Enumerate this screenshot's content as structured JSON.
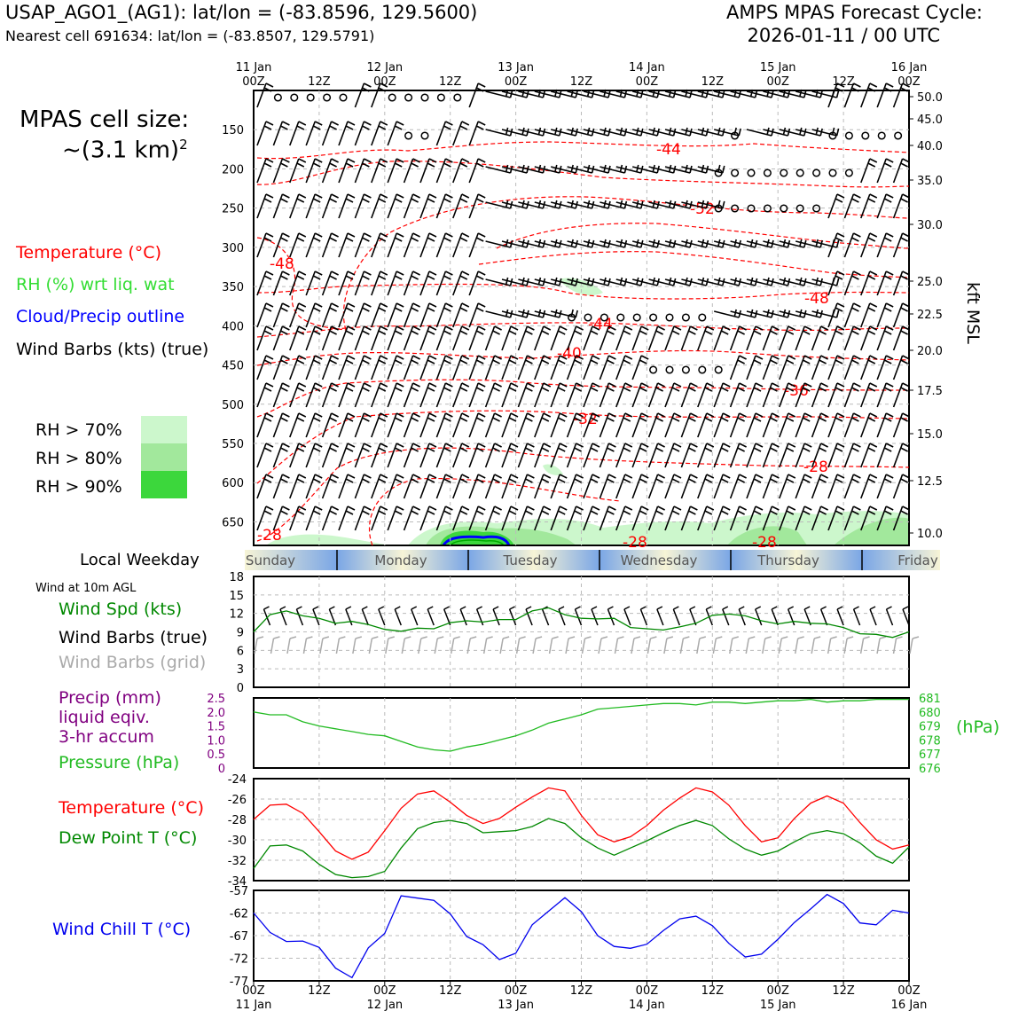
{
  "header": {
    "station": "USAP_AGO1_(AG1): lat/lon = (-83.8596, 129.5600)",
    "nearest": "Nearest cell 691634: lat/lon = (-83.8507, 129.5791)",
    "forecast_title": "AMPS MPAS Forecast Cycle:",
    "cycle": "2026-01-11 / 00 UTC"
  },
  "cell_size": {
    "line1": "MPAS cell size:",
    "line2": "~(3.1 km)",
    "sup": "2"
  },
  "legend": {
    "temperature": "Temperature (°C)",
    "rh": "RH (%) wrt liq. wat",
    "cloud": "Cloud/Precip outline",
    "barbs": "Wind Barbs (kts) (true)",
    "rh70": "RH > 70%",
    "rh80": "RH > 80%",
    "rh90": "RH > 90%",
    "rh_colors": [
      "#ccf7cc",
      "#a2e89c",
      "#3cd73c"
    ]
  },
  "colors": {
    "temp": "#ff0000",
    "rh": "#33dd33",
    "cloud": "#0000ff",
    "green": "#008800",
    "pressure": "#22bb22",
    "precip": "#800080",
    "chill": "#0000ee",
    "grey": "#aaaaaa"
  },
  "kft_label": "kft MSL",
  "local_weekday": {
    "label": "Local Weekday",
    "days": [
      "Sunday",
      "Monday",
      "Tuesday",
      "Wednesday",
      "Thursday",
      "Friday"
    ]
  },
  "wind10m": {
    "title": "Wind at 10m AGL",
    "spd": "Wind Spd (kts)",
    "barbs": "Wind Barbs (true)",
    "grid": "Wind Barbs (grid)"
  },
  "precip_legend": {
    "l1": "Precip (mm)",
    "l2": "liquid eqiv.",
    "l3": "3-hr accum",
    "pressure": "Pressure (hPa)",
    "hpa": "(hPa)"
  },
  "td_legend": {
    "temp": "Temperature (°C)",
    "dew": "Dew Point T (°C)"
  },
  "chill_legend": "Wind Chill T (°C)",
  "chart_data": [
    {
      "type": "contour",
      "title": "Vertical cross-section (pressure levels)",
      "top_date_ticks": [
        {
          "h": 0,
          "l1": "11 Jan",
          "l2": "00Z"
        },
        {
          "h": 12,
          "l1": "",
          "l2": "12Z"
        },
        {
          "h": 24,
          "l1": "12 Jan",
          "l2": "00Z"
        },
        {
          "h": 36,
          "l1": "",
          "l2": "12Z"
        },
        {
          "h": 48,
          "l1": "13 Jan",
          "l2": "00Z"
        },
        {
          "h": 60,
          "l1": "",
          "l2": "12Z"
        },
        {
          "h": 72,
          "l1": "14 Jan",
          "l2": "00Z"
        },
        {
          "h": 84,
          "l1": "",
          "l2": "12Z"
        },
        {
          "h": 96,
          "l1": "15 Jan",
          "l2": "00Z"
        },
        {
          "h": 108,
          "l1": "",
          "l2": "12Z"
        },
        {
          "h": 120,
          "l1": "16 Jan",
          "l2": "00Z"
        }
      ],
      "pressure_ticks": [
        "150",
        "200",
        "250",
        "300",
        "350",
        "400",
        "450",
        "500",
        "550",
        "600",
        "650"
      ],
      "kft_ticks": [
        "50.0",
        "45.0",
        "40.0",
        "35.0",
        "30.0",
        "25.0",
        "22.5",
        "20.0",
        "17.5",
        "15.0",
        "12.5",
        "10.0"
      ],
      "ylim_hpa": [
        100,
        680
      ],
      "temp_labels": [
        "-44",
        "-52",
        "-48",
        "-48",
        "-44",
        "-40",
        "-36",
        "-32",
        "-28",
        "-28",
        "-28",
        "-28"
      ],
      "barb_columns": 41,
      "barb_rows": 13
    },
    {
      "type": "line",
      "title": "Wind at 10m AGL",
      "ylabel": "Wind Spd (kts)",
      "ylim": [
        0,
        18
      ],
      "yticks": [
        "18",
        "15",
        "12",
        "9",
        "6",
        "3",
        "0"
      ],
      "x_hours": [
        0,
        3,
        6,
        9,
        12,
        15,
        18,
        21,
        24,
        27,
        30,
        33,
        36,
        39,
        42,
        45,
        48,
        51,
        54,
        57,
        60,
        63,
        66,
        69,
        72,
        75,
        78,
        81,
        84,
        87,
        90,
        93,
        96,
        99,
        102,
        105,
        108,
        111,
        114,
        117,
        120
      ],
      "series": [
        {
          "name": "Wind Spd (kts)",
          "values": [
            9,
            11.8,
            12.4,
            11.6,
            11.2,
            10.4,
            10.7,
            10.2,
            9.4,
            9.1,
            9.6,
            9.5,
            10.5,
            10.8,
            10.6,
            11,
            11,
            12.4,
            12.9,
            11.8,
            11.2,
            11.1,
            11.2,
            9.7,
            9.5,
            9.3,
            9.8,
            10.4,
            11.7,
            11.9,
            11.6,
            10.8,
            10.3,
            10.7,
            10.4,
            10.3,
            9.7,
            8.7,
            8.6,
            8.1,
            9
          ]
        }
      ]
    },
    {
      "type": "line",
      "title": "Precip and Pressure",
      "left_ylabel": "Precip (mm)",
      "left_yticks": [
        "2.5",
        "2.0",
        "1.5",
        "1.0",
        "0.5",
        "0"
      ],
      "right_yticks": [
        "681",
        "680",
        "679",
        "678",
        "677",
        "676"
      ],
      "ylim_right": [
        676,
        681
      ],
      "series": [
        {
          "name": "Pressure (hPa)",
          "values": [
            680,
            679.8,
            679.8,
            679.3,
            679,
            678.8,
            678.6,
            678.4,
            678.3,
            677.9,
            677.5,
            677.3,
            677.2,
            677.5,
            677.7,
            678,
            678.3,
            678.7,
            679.2,
            679.5,
            679.8,
            680.2,
            680.3,
            680.4,
            680.5,
            680.6,
            680.6,
            680.5,
            680.7,
            680.7,
            680.6,
            680.7,
            680.8,
            680.8,
            680.9,
            680.7,
            680.8,
            680.8,
            680.9,
            680.9,
            680.9
          ]
        }
      ]
    },
    {
      "type": "line",
      "title": "Temperature and Dew Point",
      "ylim": [
        -34,
        -24
      ],
      "yticks": [
        "-24",
        "-26",
        "-28",
        "-30",
        "-32",
        "-34"
      ],
      "series": [
        {
          "name": "Temperature (°C)",
          "values": [
            -28,
            -26.6,
            -26.5,
            -27.4,
            -29.2,
            -31.1,
            -31.9,
            -31.2,
            -29.1,
            -26.9,
            -25.5,
            -25.2,
            -26.3,
            -27.6,
            -28.4,
            -27.9,
            -26.8,
            -25.8,
            -24.9,
            -25.2,
            -27.6,
            -29.5,
            -30.2,
            -29.7,
            -28.6,
            -27.1,
            -25.9,
            -24.9,
            -25.3,
            -26.6,
            -28.6,
            -30.2,
            -29.8,
            -27.9,
            -26.4,
            -25.7,
            -26.4,
            -28.3,
            -30,
            -30.9,
            -30.5
          ]
        },
        {
          "name": "Dew Point T (°C)",
          "values": [
            -32.8,
            -30.6,
            -30.5,
            -31.1,
            -32.4,
            -33.4,
            -33.7,
            -33.6,
            -33.1,
            -30.8,
            -28.9,
            -28.3,
            -28.1,
            -28.4,
            -29.3,
            -29.2,
            -29.1,
            -28.7,
            -27.9,
            -28.4,
            -29.8,
            -30.8,
            -31.5,
            -30.8,
            -30.1,
            -29.3,
            -28.6,
            -28.1,
            -28.6,
            -29.9,
            -30.9,
            -31.5,
            -31.1,
            -30.2,
            -29.4,
            -29.1,
            -29.4,
            -30.3,
            -31.6,
            -32.3,
            -30.7
          ]
        }
      ]
    },
    {
      "type": "line",
      "title": "Wind Chill",
      "ylim": [
        -77,
        -57
      ],
      "yticks": [
        "-57",
        "-62",
        "-67",
        "-72",
        "-77"
      ],
      "x_ticks": [
        {
          "l1": "00Z",
          "l2": "11 Jan"
        },
        {
          "l1": "12Z",
          "l2": ""
        },
        {
          "l1": "00Z",
          "l2": "12 Jan"
        },
        {
          "l1": "12Z",
          "l2": ""
        },
        {
          "l1": "00Z",
          "l2": "13 Jan"
        },
        {
          "l1": "12Z",
          "l2": ""
        },
        {
          "l1": "00Z",
          "l2": "14 Jan"
        },
        {
          "l1": "12Z",
          "l2": ""
        },
        {
          "l1": "00Z",
          "l2": "15 Jan"
        },
        {
          "l1": "12Z",
          "l2": ""
        },
        {
          "l1": "00Z",
          "l2": "16 Jan"
        }
      ],
      "series": [
        {
          "name": "Wind Chill T (°C)",
          "values": [
            -62,
            -66.3,
            -68.3,
            -68.2,
            -69.6,
            -74.2,
            -76.3,
            -69.7,
            -66.5,
            -58.2,
            -58.7,
            -59.2,
            -62.2,
            -67.2,
            -69,
            -72.3,
            -70.9,
            -64.6,
            -61.6,
            -58.6,
            -61.7,
            -67,
            -69.4,
            -69.8,
            -68.9,
            -65.9,
            -63.3,
            -62.7,
            -64.8,
            -68.7,
            -71.7,
            -71.1,
            -67.8,
            -64.1,
            -61.1,
            -57.9,
            -59.9,
            -64.2,
            -64.6,
            -61.4,
            -62
          ]
        }
      ]
    }
  ]
}
